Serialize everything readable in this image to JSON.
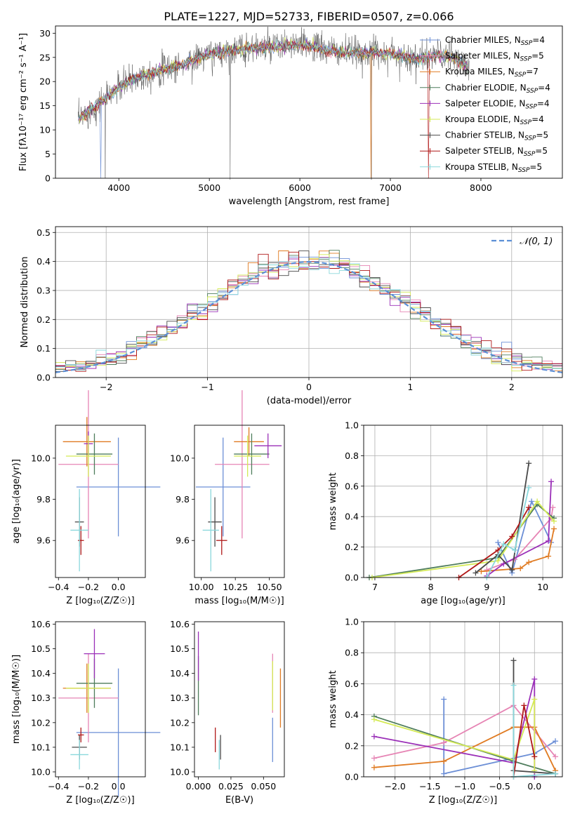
{
  "figure_title": "PLATE=1227, MJD=52733, FIBERID=0507, z=0.066",
  "models": [
    {
      "label": "Chabrier MILES, N",
      "n": "4",
      "color": "#6c8fd6"
    },
    {
      "label": "Salpeter MILES, N",
      "n": "5",
      "color": "#e684b4"
    },
    {
      "label": "Kroupa MILES, N",
      "n": "7",
      "color": "#e07b22"
    },
    {
      "label": "Chabrier ELODIE, N",
      "n": "4",
      "color": "#4f7d5c"
    },
    {
      "label": "Salpeter ELODIE, N",
      "n": "4",
      "color": "#9b30b8"
    },
    {
      "label": "Kroupa ELODIE, N",
      "n": "4",
      "color": "#d4ea55"
    },
    {
      "label": "Chabrier STELIB, N",
      "n": "5",
      "color": "#4a4a4a"
    },
    {
      "label": "Salpeter STELIB, N",
      "n": "5",
      "color": "#b01818"
    },
    {
      "label": "Kroupa STELIB, N",
      "n": "5",
      "color": "#8ad8dc"
    }
  ],
  "chart_data": [
    {
      "type": "line",
      "xlabel": "wavelength [Angstrom, rest frame]",
      "ylabel": "Flux [fλ10⁻¹⁷ erg cm⁻² s⁻¹ A⁻¹]",
      "xlim": [
        3300,
        8900
      ],
      "ylim": [
        0,
        31.5
      ],
      "xticks": [
        4000,
        5000,
        6000,
        7000,
        8000
      ],
      "yticks": [
        0,
        5,
        10,
        15,
        20,
        25,
        30
      ],
      "continuum": {
        "x": [
          3550,
          3650,
          3750,
          3850,
          3950,
          4100,
          4300,
          4500,
          4700,
          4900,
          5100,
          5300,
          5500,
          5700,
          5900,
          6100,
          6300,
          6500,
          6700,
          6900,
          7100,
          7300,
          7500,
          7700,
          7850
        ],
        "y": [
          12,
          13.5,
          15,
          16.5,
          18,
          20,
          21.5,
          22.5,
          23.5,
          25,
          26,
          26.5,
          27,
          27,
          27.5,
          27.5,
          26.5,
          26,
          26,
          26,
          25.5,
          24.5,
          25.5,
          25,
          23
        ]
      }
    },
    {
      "type": "bar",
      "title": "",
      "xlabel": "(data-model)/error",
      "ylabel": "Normed distribution",
      "xlim": [
        -2.5,
        2.5
      ],
      "ylim": [
        0,
        0.52
      ],
      "xticks": [
        -2,
        -1,
        0,
        1,
        2
      ],
      "yticks": [
        0.0,
        0.1,
        0.2,
        0.3,
        0.4,
        0.5
      ],
      "grid": true,
      "legend": {
        "label": "𝒩(0, 1)",
        "placement": "top-right"
      },
      "bin_width": 0.1
    },
    {
      "type": "scatter",
      "xlabel": "Z [log₁₀(Z/Z☉)]",
      "ylabel": "age  [log₁₀(age/yr)]",
      "xlim": [
        -0.42,
        0.18
      ],
      "ylim": [
        9.42,
        10.16
      ],
      "xticks": [
        -0.4,
        -0.2,
        0.0
      ],
      "yticks": [
        9.6,
        9.8,
        10.0
      ],
      "points": [
        {
          "x": 0.0,
          "xerr": 0.28,
          "y": 9.86,
          "yerr": 0.24
        },
        {
          "x": -0.2,
          "xerr": 0.2,
          "y": 9.97,
          "yerr": 0.36
        },
        {
          "x": -0.21,
          "xerr": 0.16,
          "y": 10.08,
          "yerr": 0.12
        },
        {
          "x": -0.16,
          "xerr": 0.12,
          "y": 10.02,
          "yerr": 0.1
        },
        {
          "x": -0.2,
          "xerr": 0.03,
          "y": 10.07,
          "yerr": 0.06
        },
        {
          "x": -0.2,
          "xerr": 0.15,
          "y": 10.01,
          "yerr": 0.1
        },
        {
          "x": -0.26,
          "xerr": 0.03,
          "y": 9.69,
          "yerr": 0.12
        },
        {
          "x": -0.25,
          "xerr": 0.02,
          "y": 9.6,
          "yerr": 0.07
        },
        {
          "x": -0.26,
          "xerr": 0.06,
          "y": 9.65,
          "yerr": 0.2
        }
      ]
    },
    {
      "type": "scatter",
      "xlabel": "mass [log₁₀(M/M☉)]",
      "ylabel": "",
      "xlim": [
        9.95,
        10.61
      ],
      "ylim": [
        9.42,
        10.16
      ],
      "xticks": [
        10.0,
        10.25,
        10.5
      ],
      "yticks": [
        9.6,
        9.8,
        10.0
      ],
      "points": [
        {
          "x": 10.16,
          "xerr": 0.2,
          "y": 9.86,
          "yerr": 0.24
        },
        {
          "x": 10.3,
          "xerr": 0.2,
          "y": 9.97,
          "yerr": 0.36
        },
        {
          "x": 10.35,
          "xerr": 0.11,
          "y": 10.08,
          "yerr": 0.07
        },
        {
          "x": 10.37,
          "xerr": 0.13,
          "y": 10.02,
          "yerr": 0.1
        },
        {
          "x": 10.49,
          "xerr": 0.1,
          "y": 10.06,
          "yerr": 0.06
        },
        {
          "x": 10.34,
          "xerr": 0.1,
          "y": 10.01,
          "yerr": 0.1
        },
        {
          "x": 10.1,
          "xerr": 0.05,
          "y": 9.69,
          "yerr": 0.12
        },
        {
          "x": 10.15,
          "xerr": 0.04,
          "y": 9.6,
          "yerr": 0.07
        },
        {
          "x": 10.07,
          "xerr": 0.06,
          "y": 9.65,
          "yerr": 0.2
        }
      ]
    },
    {
      "type": "line",
      "xlabel": "age  [log₁₀(age/yr)]",
      "ylabel": "mass weight",
      "xlim": [
        6.8,
        10.35
      ],
      "ylim": [
        0,
        1.0
      ],
      "xticks": [
        7,
        8,
        9,
        10
      ],
      "yticks": [
        0.0,
        0.2,
        0.4,
        0.6,
        0.8,
        1.0
      ],
      "grid": true,
      "series": [
        {
          "x": [
            9.2,
            9.45,
            9.8,
            10.15
          ],
          "y": [
            0.23,
            0.03,
            0.5,
            0.23
          ]
        },
        {
          "x": [
            9.0,
            9.5,
            10.15,
            10.18
          ],
          "y": [
            0.05,
            0.12,
            0.39,
            0.46
          ]
        },
        {
          "x": [
            8.9,
            9.6,
            9.75,
            10.1,
            10.2
          ],
          "y": [
            0.04,
            0.06,
            0.1,
            0.14,
            0.32
          ]
        },
        {
          "x": [
            6.9,
            9.2,
            9.9,
            10.2
          ],
          "y": [
            0.0,
            0.13,
            0.48,
            0.39
          ]
        },
        {
          "x": [
            9.0,
            9.3,
            10.1,
            10.15
          ],
          "y": [
            0.01,
            0.09,
            0.24,
            0.63
          ]
        },
        {
          "x": [
            6.95,
            9.2,
            9.9,
            10.2
          ],
          "y": [
            0.0,
            0.11,
            0.5,
            0.37
          ]
        },
        {
          "x": [
            8.8,
            9.2,
            9.45,
            9.75
          ],
          "y": [
            0.03,
            0.15,
            0.05,
            0.75
          ]
        },
        {
          "x": [
            8.5,
            9.2,
            9.45,
            9.75
          ],
          "y": [
            0.0,
            0.18,
            0.27,
            0.46
          ]
        },
        {
          "x": [
            9.0,
            9.3,
            9.5,
            9.75
          ],
          "y": [
            0.0,
            0.22,
            0.18,
            0.59
          ]
        }
      ]
    },
    {
      "type": "scatter",
      "xlabel": "Z [log₁₀(Z/Z☉)]",
      "ylabel": "mass [log₁₀(M/M☉)]",
      "xlim": [
        -0.42,
        0.18
      ],
      "ylim": [
        9.98,
        10.61
      ],
      "xticks": [
        -0.4,
        -0.2,
        0.0
      ],
      "yticks": [
        10.0,
        10.1,
        10.2,
        10.3,
        10.4,
        10.5,
        10.6
      ],
      "points": [
        {
          "x": 0.0,
          "xerr": 0.28,
          "y": 10.16,
          "yerr": 0.26
        },
        {
          "x": -0.2,
          "xerr": 0.2,
          "y": 10.3,
          "yerr": 0.18
        },
        {
          "x": -0.21,
          "xerr": 0.16,
          "y": 10.34,
          "yerr": 0.1
        },
        {
          "x": -0.16,
          "xerr": 0.12,
          "y": 10.36,
          "yerr": 0.1
        },
        {
          "x": -0.16,
          "xerr": 0.07,
          "y": 10.48,
          "yerr": 0.1
        },
        {
          "x": -0.2,
          "xerr": 0.15,
          "y": 10.34,
          "yerr": 0.1
        },
        {
          "x": -0.26,
          "xerr": 0.05,
          "y": 10.1,
          "yerr": 0.05
        },
        {
          "x": -0.25,
          "xerr": 0.02,
          "y": 10.15,
          "yerr": 0.03
        },
        {
          "x": -0.26,
          "xerr": 0.06,
          "y": 10.07,
          "yerr": 0.06
        }
      ]
    },
    {
      "type": "scatter",
      "xlabel": "E(B-V)",
      "ylabel": "",
      "xlim": [
        -0.003,
        0.066
      ],
      "ylim": [
        9.98,
        10.61
      ],
      "xticks": [
        0.0,
        0.025,
        0.05
      ],
      "yticks": [
        10.0,
        10.1,
        10.2,
        10.3,
        10.4,
        10.5,
        10.6
      ],
      "points": [
        {
          "x": 0.057,
          "y": 10.13,
          "yerr": 0.09
        },
        {
          "x": 0.057,
          "y": 10.36,
          "yerr": 0.12
        },
        {
          "x": 0.063,
          "y": 10.3,
          "yerr": 0.12
        },
        {
          "x": 0.0,
          "y": 10.35,
          "yerr": 0.12
        },
        {
          "x": 0.0,
          "y": 10.47,
          "yerr": 0.1
        },
        {
          "x": 0.057,
          "y": 10.35,
          "yerr": 0.1
        },
        {
          "x": 0.017,
          "y": 10.1,
          "yerr": 0.05
        },
        {
          "x": 0.013,
          "y": 10.13,
          "yerr": 0.05
        },
        {
          "x": 0.016,
          "y": 10.07,
          "yerr": 0.06
        }
      ]
    },
    {
      "type": "line",
      "xlabel": "Z [log₁₀(Z/Z☉)]",
      "ylabel": "mass weight",
      "xlim": [
        -2.45,
        0.4
      ],
      "ylim": [
        0,
        1.0
      ],
      "xticks": [
        -2.0,
        -1.5,
        -1.0,
        -0.5,
        0.0
      ],
      "yticks": [
        0.0,
        0.2,
        0.4,
        0.6,
        0.8,
        1.0
      ],
      "grid": true,
      "series": [
        {
          "x": [
            -1.3,
            -1.3,
            0.0,
            0.3
          ],
          "y": [
            0.5,
            0.02,
            0.15,
            0.23
          ]
        },
        {
          "x": [
            -2.3,
            -1.3,
            -0.3,
            0.3
          ],
          "y": [
            0.12,
            0.22,
            0.46,
            0.13
          ]
        },
        {
          "x": [
            -2.3,
            -1.3,
            -0.3,
            0.0,
            0.3
          ],
          "y": [
            0.06,
            0.1,
            0.32,
            0.32,
            0.04
          ]
        },
        {
          "x": [
            -2.3,
            -0.3,
            0.3
          ],
          "y": [
            0.39,
            0.1,
            0.02
          ]
        },
        {
          "x": [
            -2.3,
            -0.3,
            0.0,
            0.0
          ],
          "y": [
            0.26,
            0.09,
            0.63,
            0.0
          ]
        },
        {
          "x": [
            -2.3,
            -0.3,
            0.0,
            0.0
          ],
          "y": [
            0.37,
            0.11,
            0.5,
            0.04
          ]
        },
        {
          "x": [
            -0.3,
            -0.3,
            0.3
          ],
          "y": [
            0.75,
            0.04,
            0.02
          ]
        },
        {
          "x": [
            -0.3,
            -0.15,
            0.0
          ],
          "y": [
            0.0,
            0.46,
            0.13
          ]
        },
        {
          "x": [
            -0.3,
            -0.3,
            0.3
          ],
          "y": [
            0.59,
            0.0,
            0.02
          ]
        }
      ]
    }
  ]
}
